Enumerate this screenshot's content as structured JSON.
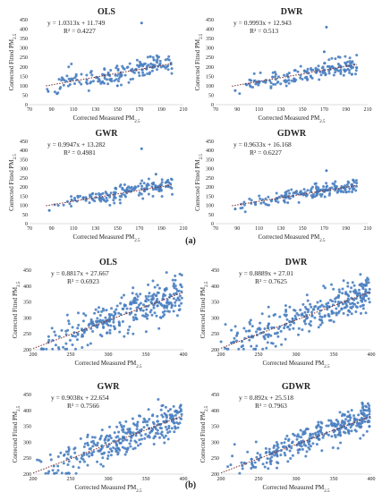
{
  "figure": {
    "part_labels": [
      "(a)",
      "(b)"
    ]
  },
  "chart_data": [
    {
      "type": "scatter",
      "title": "OLS",
      "equation": "y = 1.0313x + 11.749",
      "r2": "R² = 0.4227",
      "xlabel": "Corrected Measured PM2.5",
      "ylabel": "Corrected Fitted PM2.5",
      "xlim": [
        70,
        210
      ],
      "ylim": [
        0,
        450
      ],
      "xticks": [
        70,
        90,
        110,
        130,
        150,
        170,
        190,
        210
      ],
      "yticks": [
        0,
        50,
        100,
        150,
        200,
        250,
        300,
        350,
        400,
        450
      ],
      "trend": {
        "slope": 1.0313,
        "intercept": 11.749,
        "x0": 85,
        "x1": 200
      },
      "cloud": {
        "x_min": 85,
        "x_max": 200,
        "spread": 26,
        "count": 170,
        "seed": 11,
        "outliers": [
          [
            172,
            432
          ],
          [
            87,
            70
          ],
          [
            95,
            58
          ],
          [
            150,
            100
          ],
          [
            180,
            255
          ]
        ]
      },
      "grid": false,
      "marker_color": "#4a7fc1",
      "trend_color": "#7a2a2a"
    },
    {
      "type": "scatter",
      "title": "DWR",
      "equation": "y = 0.9993x + 12.943",
      "r2": "R² = 0.513",
      "xlabel": "Corrected Measured PM2.5",
      "ylabel": "Corrected Fitted PM2.5",
      "xlim": [
        70,
        210
      ],
      "ylim": [
        0,
        450
      ],
      "xticks": [
        70,
        90,
        110,
        130,
        150,
        170,
        190,
        210
      ],
      "yticks": [
        0,
        50,
        100,
        150,
        200,
        250,
        300,
        350,
        400,
        450
      ],
      "trend": {
        "slope": 0.9993,
        "intercept": 12.943,
        "x0": 85,
        "x1": 200
      },
      "cloud": {
        "x_min": 85,
        "x_max": 200,
        "spread": 22,
        "count": 170,
        "seed": 23,
        "outliers": [
          [
            172,
            410
          ],
          [
            88,
            75
          ],
          [
            170,
            280
          ]
        ]
      },
      "grid": false,
      "marker_color": "#4a7fc1",
      "trend_color": "#7a2a2a"
    },
    {
      "type": "scatter",
      "title": "GWR",
      "equation": "y = 0.9947x + 13.282",
      "r2": "R² = 0.4981",
      "xlabel": "Corrected Measured PM2.5",
      "ylabel": "Corrected Fitted PM2.5",
      "xlim": [
        70,
        210
      ],
      "ylim": [
        0,
        450
      ],
      "xticks": [
        70,
        90,
        110,
        130,
        150,
        170,
        190,
        210
      ],
      "yticks": [
        0,
        50,
        100,
        150,
        200,
        250,
        300,
        350,
        400,
        450
      ],
      "trend": {
        "slope": 0.9947,
        "intercept": 13.282,
        "x0": 85,
        "x1": 200
      },
      "cloud": {
        "x_min": 85,
        "x_max": 200,
        "spread": 22,
        "count": 170,
        "seed": 37,
        "outliers": [
          [
            172,
            410
          ],
          [
            88,
            72
          ],
          [
            185,
            270
          ]
        ]
      },
      "grid": false,
      "marker_color": "#4a7fc1",
      "trend_color": "#7a2a2a"
    },
    {
      "type": "scatter",
      "title": "GDWR",
      "equation": "y = 0.9633x + 16.168",
      "r2": "R² = 0.6227",
      "xlabel": "Corrected Measured PM2.5",
      "ylabel": "Corrected Fitted PM2.5",
      "xlim": [
        70,
        210
      ],
      "ylim": [
        0,
        450
      ],
      "xticks": [
        70,
        90,
        110,
        130,
        150,
        170,
        190,
        210
      ],
      "yticks": [
        0,
        50,
        100,
        150,
        200,
        250,
        300,
        350,
        400,
        450
      ],
      "trend": {
        "slope": 0.9633,
        "intercept": 16.168,
        "x0": 85,
        "x1": 200
      },
      "cloud": {
        "x_min": 85,
        "x_max": 200,
        "spread": 18,
        "count": 170,
        "seed": 41,
        "outliers": [
          [
            172,
            290
          ],
          [
            88,
            80
          ]
        ]
      },
      "grid": false,
      "marker_color": "#4a7fc1",
      "trend_color": "#7a2a2a"
    },
    {
      "type": "scatter",
      "title": "OLS",
      "equation": "y = 0.8817x + 27.667",
      "r2": "R² = 0.6923",
      "xlabel": "Corrected Measured PM2.5",
      "ylabel": "Corrected Fitted PM2.5",
      "xlim": [
        200,
        400
      ],
      "ylim": [
        200,
        450
      ],
      "xticks": [
        200,
        250,
        300,
        350,
        400
      ],
      "yticks": [
        200,
        250,
        300,
        350,
        400,
        450
      ],
      "trend": {
        "slope": 0.8817,
        "intercept": 27.667,
        "x0": 200,
        "x1": 400
      },
      "cloud": {
        "x_min": 200,
        "x_max": 398,
        "spread": 30,
        "count": 320,
        "seed": 53,
        "outliers": []
      },
      "grid": false,
      "marker_color": "#4a7fc1",
      "trend_color": "#7a2a2a"
    },
    {
      "type": "scatter",
      "title": "DWR",
      "equation": "y = 0.8889x + 27.01",
      "r2": "R² = 0.7625",
      "xlabel": "Corrected Measured PM2.5",
      "ylabel": "Corrected Fitted PM2.5",
      "xlim": [
        200,
        400
      ],
      "ylim": [
        200,
        450
      ],
      "xticks": [
        200,
        250,
        300,
        350,
        400
      ],
      "yticks": [
        200,
        250,
        300,
        350,
        400,
        450
      ],
      "trend": {
        "slope": 0.8889,
        "intercept": 27.01,
        "x0": 200,
        "x1": 400
      },
      "cloud": {
        "x_min": 200,
        "x_max": 398,
        "spread": 26,
        "count": 320,
        "seed": 67,
        "outliers": []
      },
      "grid": false,
      "marker_color": "#4a7fc1",
      "trend_color": "#7a2a2a"
    },
    {
      "type": "scatter",
      "title": "GWR",
      "equation": "y = 0.9038x + 22.654",
      "r2": "R² = 0.7566",
      "xlabel": "Corrected Measured PM2.5",
      "ylabel": "Corrected Fitted PM2.5",
      "xlim": [
        200,
        400
      ],
      "ylim": [
        200,
        450
      ],
      "xticks": [
        200,
        250,
        300,
        350,
        400
      ],
      "yticks": [
        200,
        250,
        300,
        350,
        400,
        450
      ],
      "trend": {
        "slope": 0.9038,
        "intercept": 22.654,
        "x0": 200,
        "x1": 400
      },
      "cloud": {
        "x_min": 200,
        "x_max": 398,
        "spread": 26,
        "count": 320,
        "seed": 79,
        "outliers": []
      },
      "grid": false,
      "marker_color": "#4a7fc1",
      "trend_color": "#7a2a2a"
    },
    {
      "type": "scatter",
      "title": "GDWR",
      "equation": "y = 0.892x + 25.518",
      "r2": "R² = 0.7963",
      "xlabel": "Corrected Measured PM2.5",
      "ylabel": "Corrected Fitted PM2.5",
      "xlim": [
        200,
        400
      ],
      "ylim": [
        200,
        450
      ],
      "xticks": [
        200,
        250,
        300,
        350,
        400
      ],
      "yticks": [
        200,
        250,
        300,
        350,
        400,
        450
      ],
      "trend": {
        "slope": 0.892,
        "intercept": 25.518,
        "x0": 200,
        "x1": 400
      },
      "cloud": {
        "x_min": 200,
        "x_max": 398,
        "spread": 24,
        "count": 320,
        "seed": 97,
        "outliers": []
      },
      "grid": false,
      "marker_color": "#4a7fc1",
      "trend_color": "#7a2a2a"
    }
  ]
}
